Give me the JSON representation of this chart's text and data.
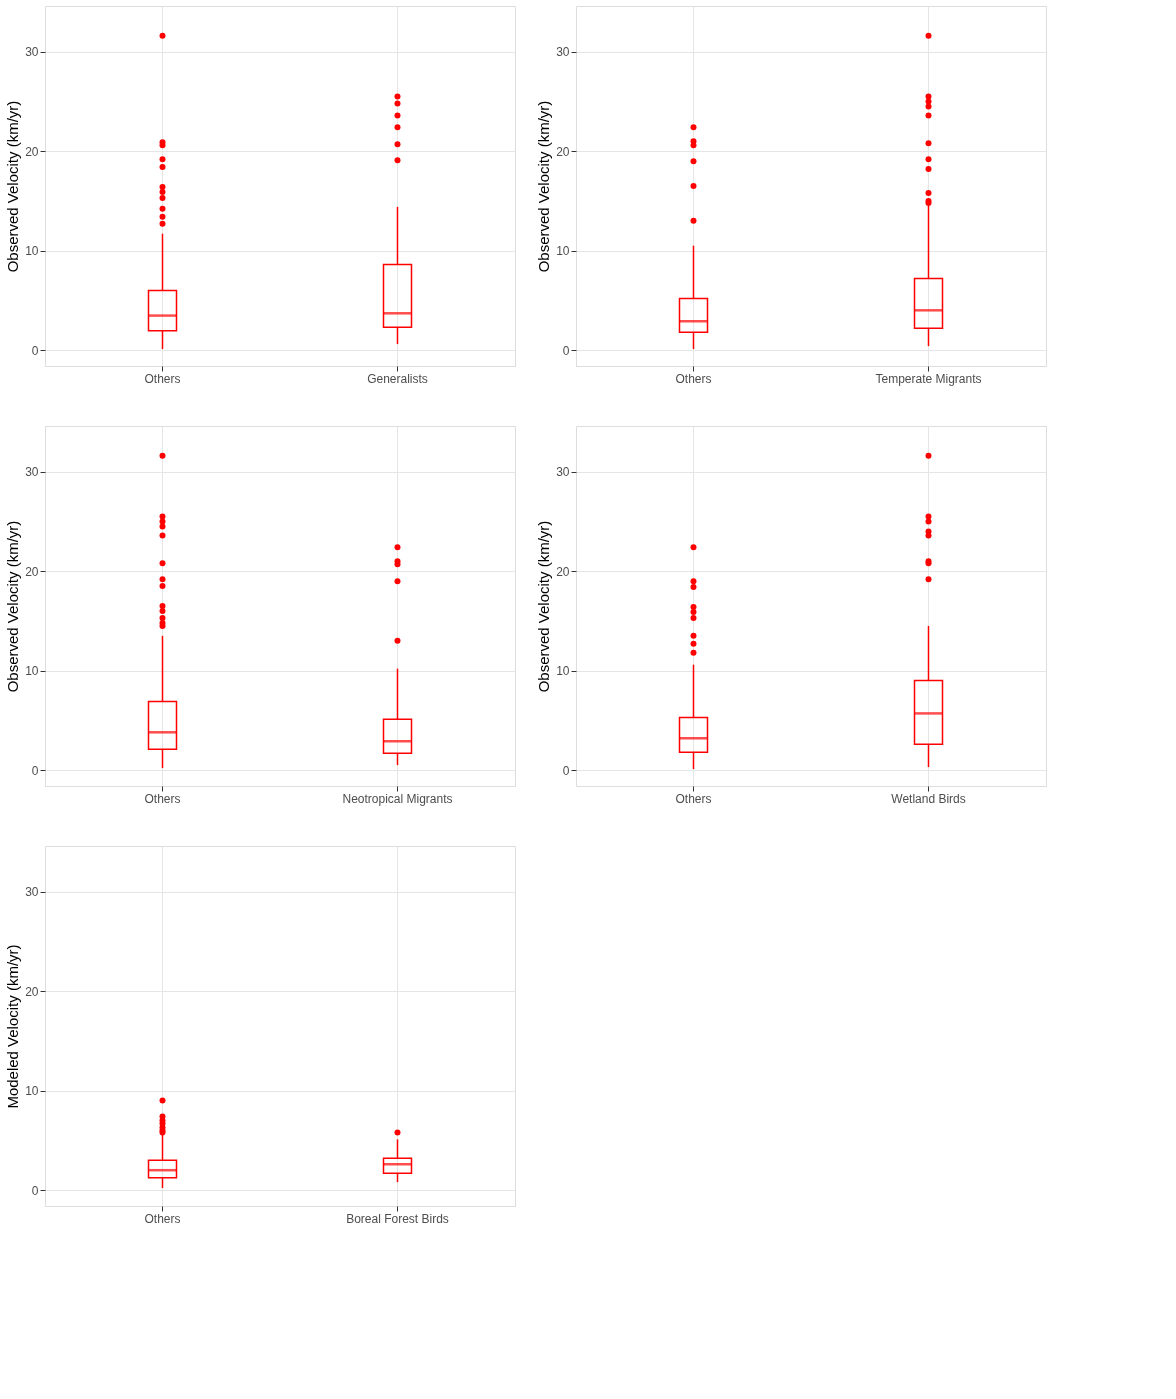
{
  "chart_data": [
    {
      "type": "box",
      "ylabel": "Observed Velocity (km/yr)",
      "categories": [
        "Others",
        "Generalists"
      ],
      "ylim": [
        -1.6,
        34.6
      ],
      "yticks": [
        0,
        10,
        20,
        30
      ],
      "grid": true,
      "series": [
        {
          "color": "#ff0000",
          "boxes": [
            {
              "low": 0.1,
              "q1": 1.95,
              "median": 3.47,
              "q3": 6.0,
              "high": 11.7,
              "outliers": [
                31.6,
                20.9,
                20.6,
                19.2,
                18.4,
                16.4,
                15.9,
                15.3,
                14.2,
                13.4,
                12.7
              ]
            },
            {
              "low": 0.6,
              "q1": 2.3,
              "median": 3.7,
              "q3": 8.6,
              "high": 14.4,
              "outliers": [
                25.5,
                24.8,
                23.6,
                22.4,
                20.7,
                19.1
              ]
            }
          ]
        }
      ]
    },
    {
      "type": "box",
      "ylabel": "Observed Velocity (km/yr)",
      "categories": [
        "Others",
        "Temperate Migrants"
      ],
      "ylim": [
        -1.6,
        34.6
      ],
      "yticks": [
        0,
        10,
        20,
        30
      ],
      "grid": true,
      "series": [
        {
          "color": "#ff0000",
          "boxes": [
            {
              "low": 0.1,
              "q1": 1.8,
              "median": 2.9,
              "q3": 5.2,
              "high": 10.5,
              "outliers": [
                22.4,
                21.0,
                20.6,
                19.0,
                16.5,
                13.0
              ]
            },
            {
              "low": 0.4,
              "q1": 2.2,
              "median": 4.0,
              "q3": 7.2,
              "high": 14.5,
              "outliers": [
                31.6,
                25.5,
                25.0,
                24.5,
                23.6,
                20.8,
                19.2,
                18.2,
                15.8,
                15.0,
                14.8
              ]
            }
          ]
        }
      ]
    },
    {
      "type": "box",
      "ylabel": "Observed Velocity (km/yr)",
      "categories": [
        "Others",
        "Neotropical Migrants"
      ],
      "ylim": [
        -1.6,
        34.6
      ],
      "yticks": [
        0,
        10,
        20,
        30
      ],
      "grid": true,
      "series": [
        {
          "color": "#ff0000",
          "boxes": [
            {
              "low": 0.2,
              "q1": 2.1,
              "median": 3.8,
              "q3": 6.9,
              "high": 13.5,
              "outliers": [
                31.6,
                25.5,
                25.0,
                24.5,
                23.6,
                20.8,
                19.2,
                18.5,
                16.5,
                16.0,
                15.3,
                14.8,
                14.5
              ]
            },
            {
              "low": 0.5,
              "q1": 1.7,
              "median": 2.9,
              "q3": 5.1,
              "high": 10.2,
              "outliers": [
                22.4,
                21.0,
                20.7,
                19.0,
                13.0
              ]
            }
          ]
        }
      ]
    },
    {
      "type": "box",
      "ylabel": "Observed Velocity (km/yr)",
      "categories": [
        "Others",
        "Wetland Birds"
      ],
      "ylim": [
        -1.6,
        34.6
      ],
      "yticks": [
        0,
        10,
        20,
        30
      ],
      "grid": true,
      "series": [
        {
          "color": "#ff0000",
          "boxes": [
            {
              "low": 0.1,
              "q1": 1.8,
              "median": 3.2,
              "q3": 5.3,
              "high": 10.6,
              "outliers": [
                22.4,
                19.0,
                18.4,
                16.4,
                15.9,
                15.3,
                13.5,
                12.7,
                11.8
              ]
            },
            {
              "low": 0.3,
              "q1": 2.6,
              "median": 5.7,
              "q3": 9.0,
              "high": 14.5,
              "outliers": [
                31.6,
                25.5,
                25.0,
                24.0,
                23.6,
                21.0,
                20.8,
                19.2
              ]
            }
          ]
        }
      ]
    },
    {
      "type": "box",
      "ylabel": "Modeled Velocity (km/yr)",
      "categories": [
        "Others",
        "Boreal Forest Birds"
      ],
      "ylim": [
        -1.6,
        34.6
      ],
      "yticks": [
        0,
        10,
        20,
        30
      ],
      "grid": true,
      "series": [
        {
          "color": "#ff0000",
          "boxes": [
            {
              "low": 0.2,
              "q1": 1.25,
              "median": 2.0,
              "q3": 3.0,
              "high": 5.6,
              "outliers": [
                9.0,
                7.4,
                7.0,
                6.7,
                6.3,
                6.0,
                5.8
              ]
            },
            {
              "low": 0.8,
              "q1": 1.7,
              "median": 2.6,
              "q3": 3.2,
              "high": 5.1,
              "outliers": [
                5.8
              ]
            }
          ]
        }
      ]
    }
  ]
}
